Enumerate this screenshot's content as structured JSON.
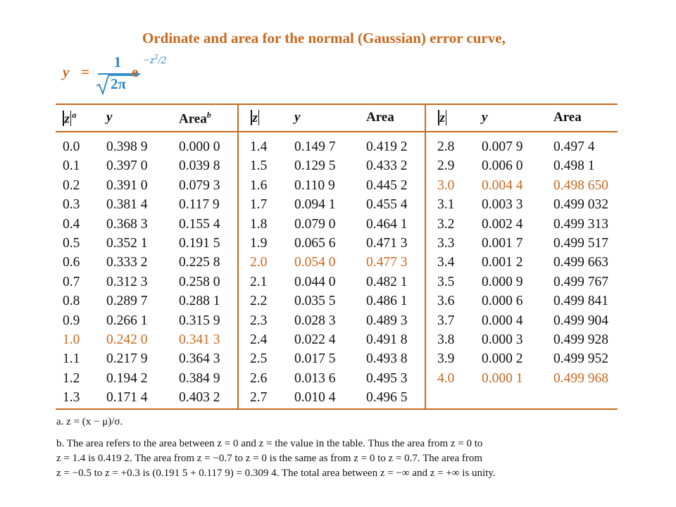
{
  "title": "Ordinate and area for the normal (Gaussian) error curve,",
  "formula": {
    "lhs": "y",
    "equals": "=",
    "numerator": "1",
    "denominator": "2π",
    "base": "e",
    "exponent_main": "−z",
    "exponent_power": "2",
    "exponent_tail": "/2"
  },
  "headers": {
    "z": "z",
    "z_note": "a",
    "y": "y",
    "area": "Area",
    "area_note": "b"
  },
  "columns": [
    {
      "rows": [
        {
          "z": "0.0",
          "y": "0.398 9",
          "area": "0.000 0"
        },
        {
          "z": "0.1",
          "y": "0.397 0",
          "area": "0.039 8"
        },
        {
          "z": "0.2",
          "y": "0.391 0",
          "area": "0.079 3"
        },
        {
          "z": "0.3",
          "y": "0.381 4",
          "area": "0.117 9"
        },
        {
          "z": "0.4",
          "y": "0.368 3",
          "area": "0.155 4"
        },
        {
          "z": "0.5",
          "y": "0.352 1",
          "area": "0.191 5"
        },
        {
          "z": "0.6",
          "y": "0.333 2",
          "area": "0.225 8"
        },
        {
          "z": "0.7",
          "y": "0.312 3",
          "area": "0.258 0"
        },
        {
          "z": "0.8",
          "y": "0.289 7",
          "area": "0.288 1"
        },
        {
          "z": "0.9",
          "y": "0.266 1",
          "area": "0.315 9"
        },
        {
          "z": "1.0",
          "y": "0.242 0",
          "area": "0.341 3",
          "highlight": true
        },
        {
          "z": "1.1",
          "y": "0.217 9",
          "area": "0.364 3"
        },
        {
          "z": "1.2",
          "y": "0.194 2",
          "area": "0.384 9"
        },
        {
          "z": "1.3",
          "y": "0.171 4",
          "area": "0.403 2"
        }
      ]
    },
    {
      "rows": [
        {
          "z": "1.4",
          "y": "0.149 7",
          "area": "0.419 2"
        },
        {
          "z": "1.5",
          "y": "0.129 5",
          "area": "0.433 2"
        },
        {
          "z": "1.6",
          "y": "0.110 9",
          "area": "0.445 2"
        },
        {
          "z": "1.7",
          "y": "0.094 1",
          "area": "0.455 4"
        },
        {
          "z": "1.8",
          "y": "0.079 0",
          "area": "0.464 1"
        },
        {
          "z": "1.9",
          "y": "0.065 6",
          "area": "0.471 3"
        },
        {
          "z": "2.0",
          "y": "0.054 0",
          "area": "0.477 3",
          "highlight": true
        },
        {
          "z": "2.1",
          "y": "0.044 0",
          "area": "0.482 1"
        },
        {
          "z": "2.2",
          "y": "0.035 5",
          "area": "0.486 1"
        },
        {
          "z": "2.3",
          "y": "0.028 3",
          "area": "0.489 3"
        },
        {
          "z": "2.4",
          "y": "0.022 4",
          "area": "0.491 8"
        },
        {
          "z": "2.5",
          "y": "0.017 5",
          "area": "0.493 8"
        },
        {
          "z": "2.6",
          "y": "0.013 6",
          "area": "0.495 3"
        },
        {
          "z": "2.7",
          "y": "0.010 4",
          "area": "0.496 5"
        }
      ]
    },
    {
      "rows": [
        {
          "z": "2.8",
          "y": "0.007 9",
          "area": "0.497 4"
        },
        {
          "z": "2.9",
          "y": "0.006 0",
          "area": "0.498 1"
        },
        {
          "z": "3.0",
          "y": "0.004 4",
          "area": "0.498 650",
          "highlight": true
        },
        {
          "z": "3.1",
          "y": "0.003 3",
          "area": "0.499 032"
        },
        {
          "z": "3.2",
          "y": "0.002 4",
          "area": "0.499 313"
        },
        {
          "z": "3.3",
          "y": "0.001 7",
          "area": "0.499 517"
        },
        {
          "z": "3.4",
          "y": "0.001 2",
          "area": "0.499 663"
        },
        {
          "z": "3.5",
          "y": "0.000 9",
          "area": "0.499 767"
        },
        {
          "z": "3.6",
          "y": "0.000 6",
          "area": "0.499 841"
        },
        {
          "z": "3.7",
          "y": "0.000 4",
          "area": "0.499 904"
        },
        {
          "z": "3.8",
          "y": "0.000 3",
          "area": "0.499 928"
        },
        {
          "z": "3.9",
          "y": "0.000 2",
          "area": "0.499 952"
        },
        {
          "z": "4.0",
          "y": "0.000 1",
          "area": "0.499 968",
          "highlight": true
        }
      ]
    }
  ],
  "footnotes": {
    "a": "a. z = (x − μ)/σ.",
    "b_line1": "b. The area refers to the area between z = 0 and z = the value in the table. Thus the area from z = 0 to",
    "b_line2": "z = 1.4 is 0.419 2. The area from z = −0.7 to z = 0 is the same as from z = 0 to z = 0.7. The area from",
    "b_line3": "z = −0.5 to z = +0.3 is (0.191 5 + 0.117 9) = 0.309 4. The total area between z = −∞ and z = +∞ is unity."
  },
  "colors": {
    "accent": "#c8691e",
    "formula_blue": "#2a86c4",
    "text": "#111111"
  }
}
